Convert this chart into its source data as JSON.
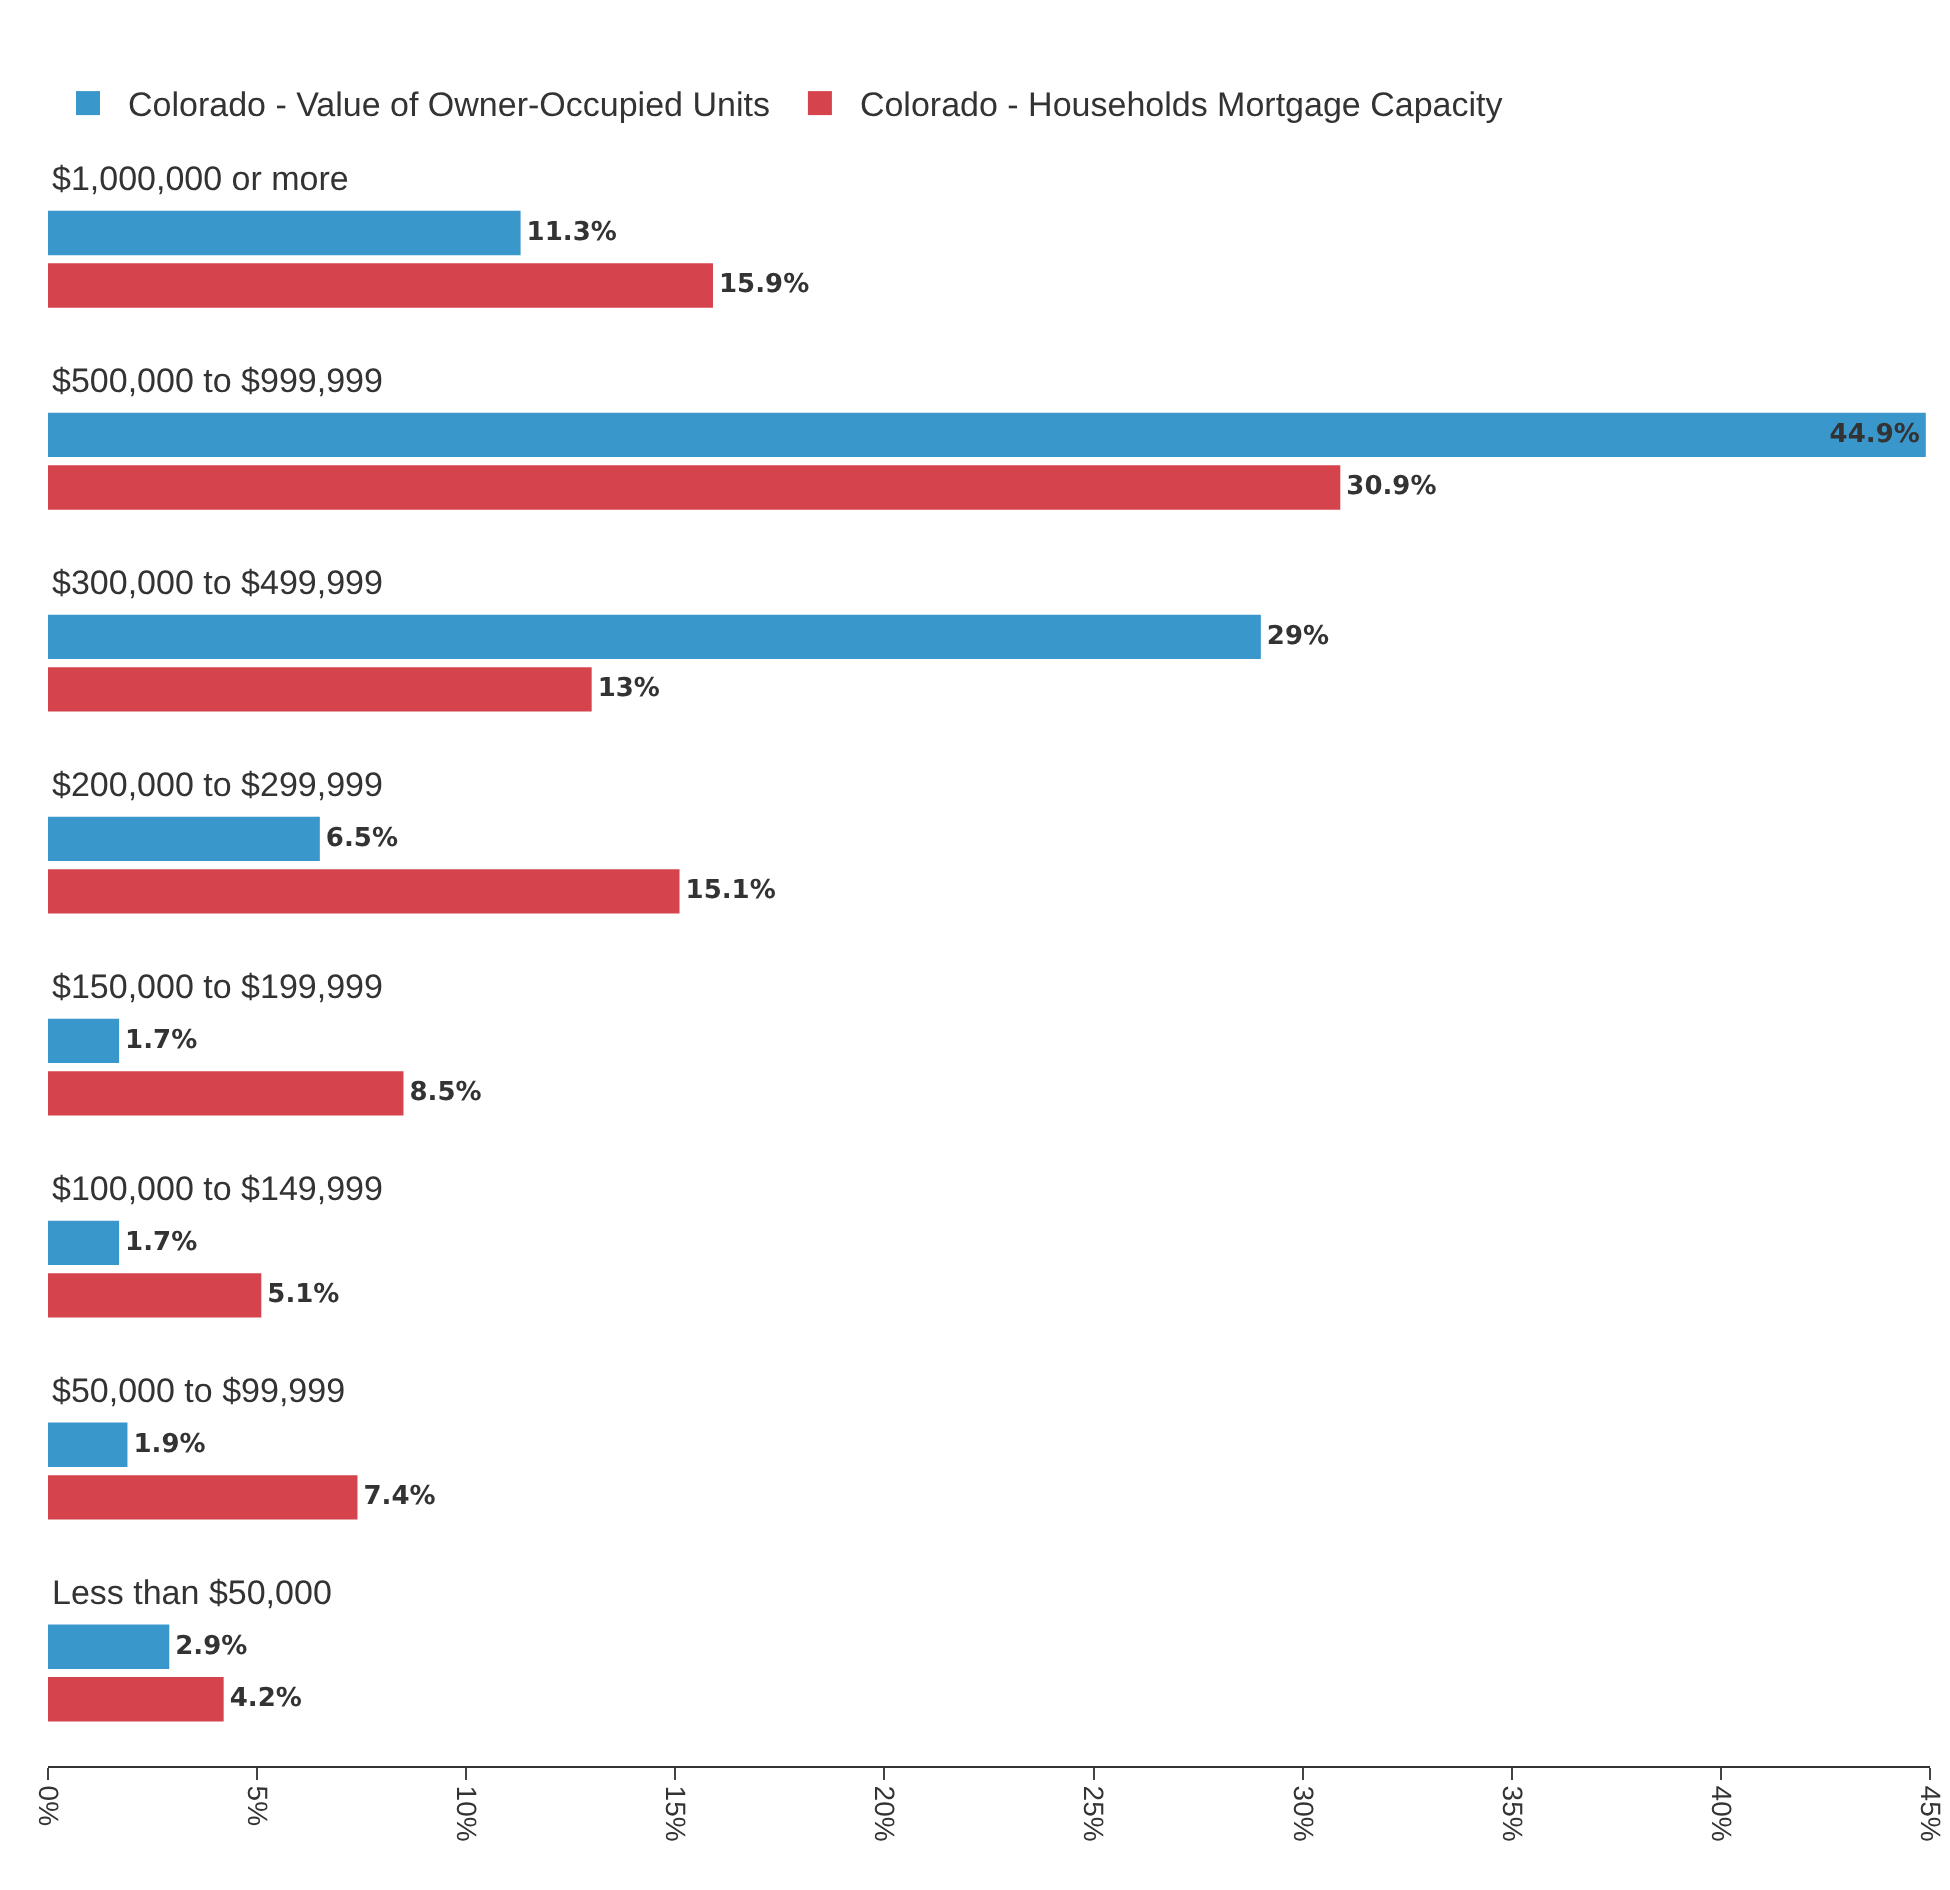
{
  "chart_data": {
    "type": "bar",
    "orientation": "horizontal",
    "categories": [
      "$1,000,000 or more",
      "$500,000 to $999,999",
      "$300,000 to $499,999",
      "$200,000 to $299,999",
      "$150,000 to $199,999",
      "$100,000 to $149,999",
      "$50,000 to $99,999",
      "Less than $50,000"
    ],
    "series": [
      {
        "name": "Colorado - Value of Owner-Occupied Units",
        "color": "#3a97cb",
        "values": [
          11.3,
          44.9,
          29,
          6.5,
          1.7,
          1.7,
          1.9,
          2.9
        ],
        "value_labels": [
          "11.3%",
          "44.9%",
          "29%",
          "6.5%",
          "1.7%",
          "1.7%",
          "1.9%",
          "2.9%"
        ]
      },
      {
        "name": "Colorado - Households Mortgage Capacity",
        "color": "#d5444c",
        "values": [
          15.9,
          30.9,
          13,
          15.1,
          8.5,
          5.1,
          7.4,
          4.2
        ],
        "value_labels": [
          "15.9%",
          "30.9%",
          "13%",
          "15.1%",
          "8.5%",
          "5.1%",
          "7.4%",
          "4.2%"
        ]
      }
    ],
    "xlim": [
      0,
      45
    ],
    "xticks": [
      {
        "value": 0,
        "label": "0%"
      },
      {
        "value": 5,
        "label": "5%"
      },
      {
        "value": 10,
        "label": "10%"
      },
      {
        "value": 15,
        "label": "15%"
      },
      {
        "value": 20,
        "label": "20%"
      },
      {
        "value": 25,
        "label": "25%"
      },
      {
        "value": 30,
        "label": "30%"
      },
      {
        "value": 35,
        "label": "35%"
      },
      {
        "value": 40,
        "label": "40%"
      },
      {
        "value": 45,
        "label": "45%"
      }
    ],
    "grid": false,
    "legend": "top left"
  }
}
